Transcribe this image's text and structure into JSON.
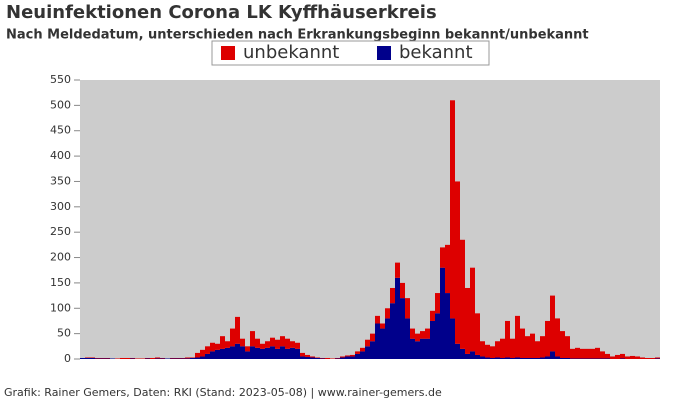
{
  "chart_data": {
    "type": "stacked-bar",
    "title": "Neuinfektionen Corona LK Kyffhäuserkreis",
    "subtitle": "Nach Meldedatum, unterschieden nach Erkrankungsbeginn bekannt/unbekannt",
    "footer": "Grafik: Rainer Gemers, Daten: RKI (Stand: 2023-05-08) | www.rainer-gemers.de",
    "ylim": [
      0,
      550
    ],
    "yticks": [
      0,
      50,
      100,
      150,
      200,
      250,
      300,
      350,
      400,
      450,
      500,
      550
    ],
    "grid": false,
    "legend": "top",
    "series": [
      {
        "name": "bekannt",
        "color": "#00008b",
        "values": [
          2,
          2,
          2,
          1,
          1,
          1,
          1,
          0,
          0,
          0,
          1,
          0,
          0,
          1,
          0,
          1,
          1,
          1,
          1,
          1,
          1,
          1,
          2,
          3,
          5,
          10,
          15,
          18,
          20,
          22,
          25,
          30,
          25,
          15,
          25,
          22,
          20,
          22,
          25,
          20,
          25,
          20,
          22,
          20,
          5,
          4,
          3,
          2,
          1,
          0,
          0,
          1,
          3,
          5,
          5,
          10,
          15,
          25,
          35,
          70,
          60,
          80,
          110,
          160,
          120,
          80,
          40,
          35,
          40,
          40,
          75,
          90,
          180,
          130,
          80,
          30,
          20,
          10,
          15,
          8,
          5,
          3,
          2,
          3,
          2,
          3,
          2,
          3,
          2,
          2,
          2,
          2,
          3,
          5,
          15,
          5,
          2,
          2,
          1,
          1,
          1,
          1,
          1,
          1,
          1,
          1,
          0,
          0,
          1,
          0,
          0,
          0,
          0,
          0,
          0,
          1
        ]
      },
      {
        "name": "unbekannt",
        "color": "#dd0000",
        "values": [
          0,
          1,
          1,
          1,
          1,
          1,
          0,
          1,
          2,
          2,
          1,
          1,
          1,
          1,
          2,
          2,
          1,
          0,
          1,
          1,
          1,
          2,
          1,
          9,
          13,
          15,
          17,
          12,
          25,
          13,
          35,
          53,
          15,
          10,
          30,
          18,
          10,
          13,
          17,
          18,
          20,
          20,
          13,
          12,
          7,
          4,
          2,
          1,
          1,
          2,
          1,
          1,
          2,
          2,
          3,
          5,
          7,
          13,
          15,
          15,
          10,
          20,
          30,
          30,
          30,
          40,
          20,
          15,
          15,
          20,
          20,
          40,
          40,
          95,
          430,
          320,
          215,
          130,
          165,
          82,
          30,
          25,
          23,
          32,
          38,
          72,
          38,
          82,
          58,
          43,
          48,
          33,
          42,
          70,
          110,
          75,
          53,
          43,
          19,
          21,
          19,
          19,
          19,
          21,
          14,
          9,
          5,
          8,
          9,
          5,
          6,
          5,
          3,
          2,
          2,
          2
        ]
      }
    ]
  }
}
